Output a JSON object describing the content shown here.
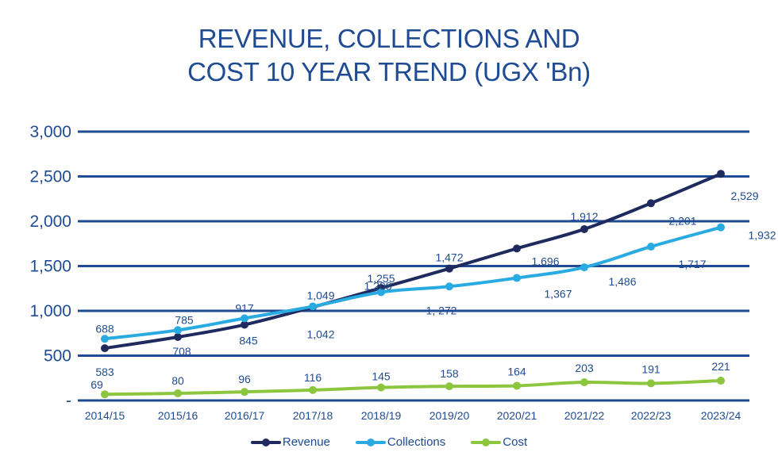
{
  "chart_data": {
    "type": "line",
    "title": [
      "REVENUE, COLLECTIONS AND",
      "COST 10 YEAR TREND (UGX 'Bn)"
    ],
    "xlabel": "",
    "ylabel": "",
    "ylim": [
      0,
      3000
    ],
    "yticks": [
      0,
      500,
      1000,
      1500,
      2000,
      2500,
      3000
    ],
    "ytick_labels": [
      "-",
      "500",
      "1,000",
      "1,500",
      "2,000",
      "2,500",
      "3,000"
    ],
    "grid": true,
    "legend_position": "bottom",
    "categories": [
      "2014/15",
      "2015/16",
      "2016/17",
      "2017/18",
      "2018/19",
      "2019/20",
      "2020/21",
      "2021/22",
      "2022/23",
      "2023/24"
    ],
    "series": [
      {
        "name": "Revenue",
        "color": "#1f2a5e",
        "values": [
          583,
          708,
          845,
          1042,
          1255,
          1472,
          1696,
          1912,
          2201,
          2529
        ],
        "labels": [
          "583",
          "708",
          "845",
          "1,042",
          "1,255",
          "1,472",
          "1,696",
          "1,912",
          "2,201",
          "2,529"
        ]
      },
      {
        "name": "Collections",
        "color": "#29abe2",
        "values": [
          688,
          785,
          917,
          1049,
          1208,
          1272,
          1367,
          1486,
          1717,
          1932
        ],
        "labels": [
          "688",
          "785",
          "917",
          "1,049",
          "1,208",
          "1, 272",
          "1,367",
          "1,486",
          "1,717",
          "1,932"
        ]
      },
      {
        "name": "Cost",
        "color": "#8cc63f",
        "values": [
          69,
          80,
          96,
          116,
          145,
          158,
          164,
          203,
          191,
          221
        ],
        "labels": [
          "69",
          "80",
          "96",
          "116",
          "145",
          "158",
          "164",
          "203",
          "191",
          "221"
        ]
      }
    ]
  },
  "colors": {
    "text": "#1e4b92",
    "grid": "#1e4b92"
  }
}
